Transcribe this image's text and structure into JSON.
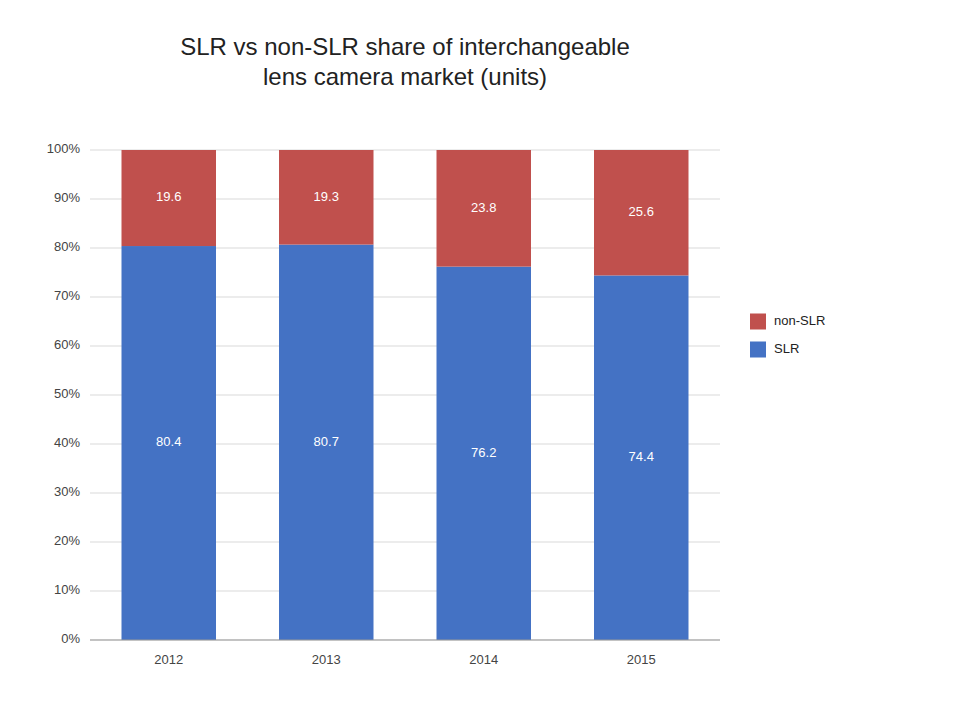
{
  "chart_data": {
    "type": "bar",
    "stacked": true,
    "title": "SLR vs non-SLR share of  interchangeable\nlens camera market (units)",
    "categories": [
      "2012",
      "2013",
      "2014",
      "2015"
    ],
    "series": [
      {
        "name": "SLR",
        "color": "#4472C4",
        "values": [
          80.4,
          80.7,
          76.2,
          74.4
        ]
      },
      {
        "name": "non-SLR",
        "color": "#C0504D",
        "values": [
          19.6,
          19.3,
          23.8,
          25.6
        ]
      }
    ],
    "ylim": [
      0,
      100
    ],
    "yticks": [
      {
        "value": 0,
        "label": "0%"
      },
      {
        "value": 10,
        "label": "10%"
      },
      {
        "value": 20,
        "label": "20%"
      },
      {
        "value": 30,
        "label": "30%"
      },
      {
        "value": 40,
        "label": "40%"
      },
      {
        "value": 50,
        "label": "50%"
      },
      {
        "value": 60,
        "label": "60%"
      },
      {
        "value": 70,
        "label": "70%"
      },
      {
        "value": 80,
        "label": "80%"
      },
      {
        "value": 90,
        "label": "90%"
      },
      {
        "value": 100,
        "label": "100%"
      }
    ],
    "grid": true,
    "legend": "right",
    "data_labels": true
  }
}
